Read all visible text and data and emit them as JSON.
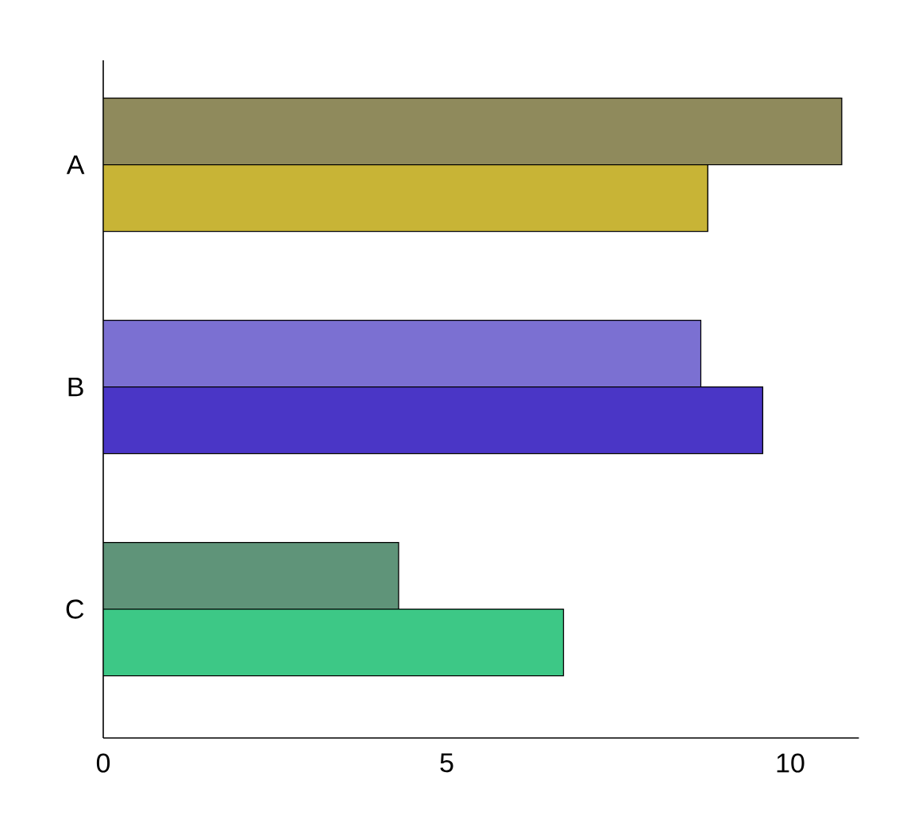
{
  "chart_data": {
    "type": "bar",
    "orientation": "horizontal",
    "categories": [
      "A",
      "B",
      "C"
    ],
    "series": [
      {
        "colors": [
          "#8f8a5c",
          "#7b70d2",
          "#5f9479"
        ],
        "values": [
          10.75,
          8.7,
          4.3
        ]
      },
      {
        "colors": [
          "#c8b436",
          "#4a36c6",
          "#3dc886"
        ],
        "values": [
          8.8,
          9.6,
          6.7
        ]
      }
    ],
    "xlim": [
      0,
      11
    ],
    "xticks": [
      0,
      5,
      10
    ]
  }
}
